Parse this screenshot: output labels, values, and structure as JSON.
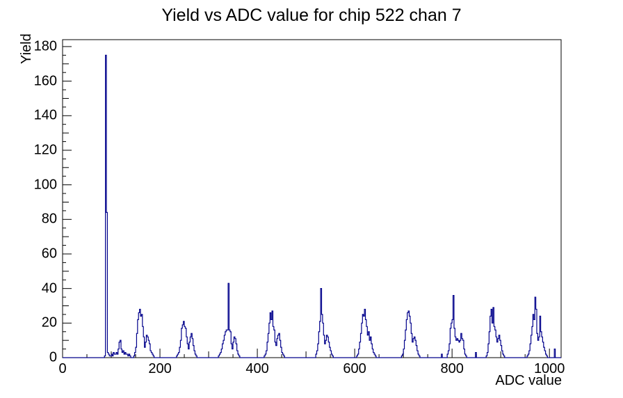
{
  "title": "Yield vs ADC value for chip 522 chan 7",
  "chart_data": {
    "type": "bar",
    "subtype": "step-histogram",
    "title": "Yield vs ADC value for chip 522 chan 7",
    "xlabel": "ADC value",
    "ylabel": "Yield",
    "xlim": [
      0,
      1024
    ],
    "ylim": [
      0,
      184
    ],
    "grid": false,
    "legend": false,
    "bin_width": 2,
    "x_major_tick_step": 200,
    "x_medium_tick_step": 100,
    "x_minor_tick_step": 50,
    "y_major_tick_step": 20,
    "y_medium_tick_step": 10,
    "y_minor_tick_step": 5,
    "x_tick_labels": [
      "0",
      "200",
      "400",
      "600",
      "800",
      "1000"
    ],
    "y_tick_labels": [
      "0",
      "20",
      "40",
      "60",
      "80",
      "100",
      "120",
      "140",
      "160",
      "180"
    ],
    "line_color": "#00008b",
    "frame_color": "#000000",
    "background_color": "#ffffff",
    "bins": [
      [
        86,
        1
      ],
      [
        88,
        175
      ],
      [
        90,
        84
      ],
      [
        92,
        3
      ],
      [
        94,
        2
      ],
      [
        96,
        1
      ],
      [
        98,
        1
      ],
      [
        100,
        2
      ],
      [
        102,
        1
      ],
      [
        104,
        3
      ],
      [
        106,
        2
      ],
      [
        108,
        2
      ],
      [
        110,
        3
      ],
      [
        112,
        2
      ],
      [
        114,
        5
      ],
      [
        116,
        9
      ],
      [
        118,
        10
      ],
      [
        120,
        5
      ],
      [
        122,
        3
      ],
      [
        124,
        4
      ],
      [
        126,
        2
      ],
      [
        128,
        3
      ],
      [
        130,
        2
      ],
      [
        132,
        2
      ],
      [
        134,
        1
      ],
      [
        136,
        2
      ],
      [
        138,
        1
      ],
      [
        146,
        1
      ],
      [
        148,
        3
      ],
      [
        150,
        6
      ],
      [
        152,
        14
      ],
      [
        154,
        22
      ],
      [
        156,
        26
      ],
      [
        158,
        28
      ],
      [
        160,
        24
      ],
      [
        162,
        25
      ],
      [
        164,
        18
      ],
      [
        166,
        12
      ],
      [
        168,
        6
      ],
      [
        170,
        9
      ],
      [
        172,
        13
      ],
      [
        174,
        12
      ],
      [
        176,
        10
      ],
      [
        178,
        8
      ],
      [
        180,
        4
      ],
      [
        182,
        3
      ],
      [
        184,
        2
      ],
      [
        186,
        1
      ],
      [
        234,
        1
      ],
      [
        236,
        2
      ],
      [
        238,
        3
      ],
      [
        240,
        6
      ],
      [
        242,
        10
      ],
      [
        244,
        17
      ],
      [
        246,
        19
      ],
      [
        248,
        21
      ],
      [
        250,
        18
      ],
      [
        252,
        17
      ],
      [
        254,
        12
      ],
      [
        256,
        8
      ],
      [
        258,
        5
      ],
      [
        260,
        9
      ],
      [
        262,
        12
      ],
      [
        264,
        14
      ],
      [
        266,
        11
      ],
      [
        268,
        7
      ],
      [
        270,
        4
      ],
      [
        272,
        2
      ],
      [
        274,
        1
      ],
      [
        320,
        1
      ],
      [
        322,
        2
      ],
      [
        324,
        3
      ],
      [
        326,
        5
      ],
      [
        328,
        8
      ],
      [
        330,
        10
      ],
      [
        332,
        13
      ],
      [
        334,
        15
      ],
      [
        336,
        16
      ],
      [
        338,
        16
      ],
      [
        340,
        43
      ],
      [
        342,
        16
      ],
      [
        344,
        15
      ],
      [
        346,
        8
      ],
      [
        348,
        5
      ],
      [
        350,
        9
      ],
      [
        352,
        12
      ],
      [
        354,
        11
      ],
      [
        356,
        8
      ],
      [
        358,
        4
      ],
      [
        360,
        2
      ],
      [
        362,
        1
      ],
      [
        414,
        1
      ],
      [
        416,
        2
      ],
      [
        418,
        4
      ],
      [
        420,
        9
      ],
      [
        422,
        14
      ],
      [
        424,
        20
      ],
      [
        426,
        26
      ],
      [
        428,
        22
      ],
      [
        430,
        27
      ],
      [
        432,
        18
      ],
      [
        434,
        16
      ],
      [
        436,
        9
      ],
      [
        438,
        7
      ],
      [
        440,
        11
      ],
      [
        442,
        13
      ],
      [
        444,
        14
      ],
      [
        446,
        10
      ],
      [
        448,
        6
      ],
      [
        450,
        3
      ],
      [
        452,
        2
      ],
      [
        454,
        1
      ],
      [
        520,
        2
      ],
      [
        522,
        4
      ],
      [
        524,
        8
      ],
      [
        526,
        15
      ],
      [
        528,
        21
      ],
      [
        530,
        40
      ],
      [
        532,
        25
      ],
      [
        534,
        20
      ],
      [
        536,
        13
      ],
      [
        538,
        8
      ],
      [
        540,
        10
      ],
      [
        542,
        13
      ],
      [
        544,
        12
      ],
      [
        546,
        9
      ],
      [
        548,
        6
      ],
      [
        550,
        4
      ],
      [
        552,
        2
      ],
      [
        554,
        1
      ],
      [
        604,
        1
      ],
      [
        606,
        2
      ],
      [
        608,
        5
      ],
      [
        610,
        9
      ],
      [
        612,
        14
      ],
      [
        614,
        20
      ],
      [
        616,
        25
      ],
      [
        618,
        24
      ],
      [
        620,
        28
      ],
      [
        622,
        22
      ],
      [
        624,
        18
      ],
      [
        626,
        13
      ],
      [
        628,
        15
      ],
      [
        630,
        10
      ],
      [
        632,
        12
      ],
      [
        634,
        8
      ],
      [
        636,
        5
      ],
      [
        638,
        3
      ],
      [
        640,
        2
      ],
      [
        642,
        1
      ],
      [
        696,
        1
      ],
      [
        698,
        2
      ],
      [
        700,
        5
      ],
      [
        702,
        10
      ],
      [
        704,
        16
      ],
      [
        706,
        22
      ],
      [
        708,
        26
      ],
      [
        710,
        27
      ],
      [
        712,
        24
      ],
      [
        714,
        20
      ],
      [
        716,
        14
      ],
      [
        718,
        9
      ],
      [
        720,
        11
      ],
      [
        722,
        12
      ],
      [
        724,
        10
      ],
      [
        726,
        7
      ],
      [
        728,
        4
      ],
      [
        730,
        2
      ],
      [
        732,
        1
      ],
      [
        778,
        2
      ],
      [
        790,
        2
      ],
      [
        792,
        4
      ],
      [
        794,
        8
      ],
      [
        796,
        17
      ],
      [
        798,
        20
      ],
      [
        800,
        22
      ],
      [
        802,
        36
      ],
      [
        804,
        17
      ],
      [
        806,
        12
      ],
      [
        808,
        10
      ],
      [
        810,
        11
      ],
      [
        812,
        10
      ],
      [
        814,
        9
      ],
      [
        816,
        10
      ],
      [
        818,
        14
      ],
      [
        820,
        11
      ],
      [
        822,
        10
      ],
      [
        824,
        5
      ],
      [
        826,
        2
      ],
      [
        828,
        1
      ],
      [
        848,
        3
      ],
      [
        870,
        1
      ],
      [
        872,
        3
      ],
      [
        874,
        8
      ],
      [
        876,
        15
      ],
      [
        878,
        24
      ],
      [
        880,
        28
      ],
      [
        882,
        20
      ],
      [
        884,
        29
      ],
      [
        886,
        18
      ],
      [
        888,
        16
      ],
      [
        890,
        12
      ],
      [
        892,
        9
      ],
      [
        894,
        11
      ],
      [
        896,
        13
      ],
      [
        898,
        10
      ],
      [
        900,
        7
      ],
      [
        902,
        4
      ],
      [
        904,
        2
      ],
      [
        906,
        1
      ],
      [
        954,
        1
      ],
      [
        956,
        2
      ],
      [
        958,
        4
      ],
      [
        960,
        8
      ],
      [
        962,
        13
      ],
      [
        964,
        18
      ],
      [
        966,
        25
      ],
      [
        968,
        22
      ],
      [
        970,
        35
      ],
      [
        972,
        28
      ],
      [
        974,
        14
      ],
      [
        976,
        10
      ],
      [
        978,
        12
      ],
      [
        980,
        24
      ],
      [
        982,
        15
      ],
      [
        984,
        12
      ],
      [
        986,
        9
      ],
      [
        988,
        6
      ],
      [
        990,
        4
      ],
      [
        992,
        2
      ],
      [
        994,
        1
      ],
      [
        1010,
        5
      ]
    ]
  }
}
